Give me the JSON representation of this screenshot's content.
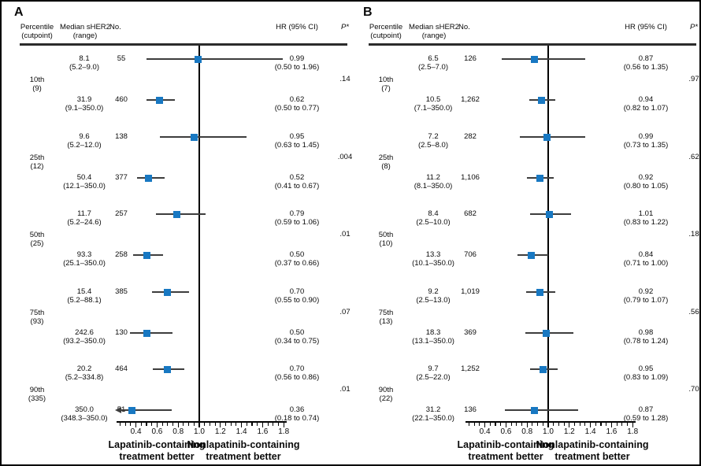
{
  "colors": {
    "marker": "#1878c2",
    "ci_line": "#3d3d3d",
    "axis": "#000000",
    "header_rule": "#2b2b2b"
  },
  "chart_data": [
    {
      "type": "forest",
      "panel_label": "A",
      "header": {
        "percentile": "Percentile\n(cutpoint)",
        "median": "Median sHER2\n(range)",
        "n": "No.",
        "hr": "HR (95% CI)",
        "p": "P*"
      },
      "xlim": [
        0.3,
        1.8
      ],
      "ref_line": 1.0,
      "x_ticks": [
        0.4,
        0.6,
        0.8,
        1.0,
        1.2,
        1.4,
        1.6,
        1.8
      ],
      "xlabel_left": "Lapatinib-containing treatment better",
      "xlabel_right": "Nonlapatinib-containing treatment better",
      "groups": [
        {
          "percentile": "10th",
          "cutpoint": "(9)",
          "p": ".14",
          "rows": [
            {
              "median": "8.1",
              "range": "(5.2–9.0)",
              "n": "55",
              "hr": 0.99,
              "ci": [
                0.5,
                1.96
              ]
            },
            {
              "median": "31.9",
              "range": "(9.1–350.0)",
              "n": "460",
              "hr": 0.62,
              "ci": [
                0.5,
                0.77
              ]
            }
          ]
        },
        {
          "percentile": "25th",
          "cutpoint": "(12)",
          "p": ".004",
          "rows": [
            {
              "median": "9.6",
              "range": "(5.2–12.0)",
              "n": "138",
              "hr": 0.95,
              "ci": [
                0.63,
                1.45
              ]
            },
            {
              "median": "50.4",
              "range": "(12.1–350.0)",
              "n": "377",
              "hr": 0.52,
              "ci": [
                0.41,
                0.67
              ]
            }
          ]
        },
        {
          "percentile": "50th",
          "cutpoint": "(25)",
          "p": ".01",
          "rows": [
            {
              "median": "11.7",
              "range": "(5.2–24.6)",
              "n": "257",
              "hr": 0.79,
              "ci": [
                0.59,
                1.06
              ]
            },
            {
              "median": "93.3",
              "range": "(25.1–350.0)",
              "n": "258",
              "hr": 0.5,
              "ci": [
                0.37,
                0.66
              ]
            }
          ]
        },
        {
          "percentile": "75th",
          "cutpoint": "(93)",
          "p": ".07",
          "rows": [
            {
              "median": "15.4",
              "range": "(5.2–88.1)",
              "n": "385",
              "hr": 0.7,
              "ci": [
                0.55,
                0.9
              ]
            },
            {
              "median": "242.6",
              "range": "(93.2–350.0)",
              "n": "130",
              "hr": 0.5,
              "ci": [
                0.34,
                0.75
              ]
            }
          ]
        },
        {
          "percentile": "90th",
          "cutpoint": "(335)",
          "p": ".01",
          "rows": [
            {
              "median": "20.2",
              "range": "(5.2–334.8)",
              "n": "464",
              "hr": 0.7,
              "ci": [
                0.56,
                0.86
              ]
            },
            {
              "median": "350.0",
              "range": "(348.3–350.0)",
              "n": "51",
              "hr": 0.36,
              "ci": [
                0.18,
                0.74
              ]
            }
          ]
        }
      ]
    },
    {
      "type": "forest",
      "panel_label": "B",
      "header": {
        "percentile": "Percentile\n(cutpoint)",
        "median": "Median sHER2\n(range)",
        "n": "No.",
        "hr": "HR (95% CI)",
        "p": "P*"
      },
      "xlim": [
        0.3,
        1.8
      ],
      "ref_line": 1.0,
      "x_ticks": [
        0.4,
        0.6,
        0.8,
        1.0,
        1.2,
        1.4,
        1.6,
        1.8
      ],
      "xlabel_left": "Lapatinib-containing treatment better",
      "xlabel_right": "Nonlapatinib-containing treatment better",
      "groups": [
        {
          "percentile": "10th",
          "cutpoint": "(7)",
          "p": ".97",
          "rows": [
            {
              "median": "6.5",
              "range": "(2.5–7.0)",
              "n": "126",
              "hr": 0.87,
              "ci": [
                0.56,
                1.35
              ]
            },
            {
              "median": "10.5",
              "range": "(7.1–350.0)",
              "n": "1,262",
              "hr": 0.94,
              "ci": [
                0.82,
                1.07
              ]
            }
          ]
        },
        {
          "percentile": "25th",
          "cutpoint": "(8)",
          "p": ".62",
          "rows": [
            {
              "median": "7.2",
              "range": "(2.5–8.0)",
              "n": "282",
              "hr": 0.99,
              "ci": [
                0.73,
                1.35
              ]
            },
            {
              "median": "11.2",
              "range": "(8.1–350.0)",
              "n": "1,106",
              "hr": 0.92,
              "ci": [
                0.8,
                1.05
              ]
            }
          ]
        },
        {
          "percentile": "50th",
          "cutpoint": "(10)",
          "p": ".18",
          "rows": [
            {
              "median": "8.4",
              "range": "(2.5–10.0)",
              "n": "682",
              "hr": 1.01,
              "ci": [
                0.83,
                1.22
              ]
            },
            {
              "median": "13.3",
              "range": "(10.1–350.0)",
              "n": "706",
              "hr": 0.84,
              "ci": [
                0.71,
                1.0
              ]
            }
          ]
        },
        {
          "percentile": "75th",
          "cutpoint": "(13)",
          "p": ".56",
          "rows": [
            {
              "median": "9.2",
              "range": "(2.5–13.0)",
              "n": "1,019",
              "hr": 0.92,
              "ci": [
                0.79,
                1.07
              ]
            },
            {
              "median": "18.3",
              "range": "(13.1–350.0)",
              "n": "369",
              "hr": 0.98,
              "ci": [
                0.78,
                1.24
              ]
            }
          ]
        },
        {
          "percentile": "90th",
          "cutpoint": "(22)",
          "p": ".70",
          "rows": [
            {
              "median": "9.7",
              "range": "(2.5–22.0)",
              "n": "1,252",
              "hr": 0.95,
              "ci": [
                0.83,
                1.09
              ]
            },
            {
              "median": "31.2",
              "range": "(22.1–350.0)",
              "n": "136",
              "hr": 0.87,
              "ci": [
                0.59,
                1.28
              ]
            }
          ]
        }
      ]
    }
  ]
}
